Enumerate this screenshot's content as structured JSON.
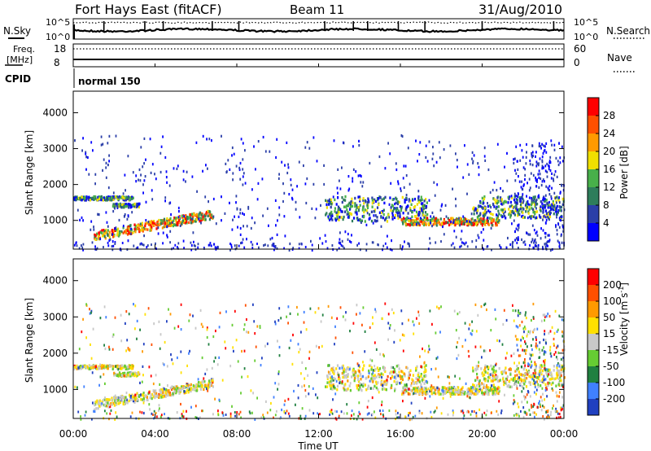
{
  "header": {
    "title": "Fort Hays East (fitACF)",
    "beam": "Beam 11",
    "date": "31/Aug/2010"
  },
  "top_panels": {
    "nsky_label": "N.Sky",
    "nsky_ticks": [
      "10^5",
      "10^0"
    ],
    "nsearch_label": "N.Search",
    "nsearch_ticks": [
      "10^5",
      "10^0"
    ],
    "freq_label_1": "Freq.",
    "freq_label_2": "[MHz]",
    "freq_ticks": [
      "18",
      "8"
    ],
    "nave_label": "Nave",
    "nave_ticks": [
      "60",
      "0"
    ],
    "cpid_label": "CPID",
    "cpid_value": "normal 150"
  },
  "chart_data": [
    {
      "type": "heatmap",
      "quantity": "power",
      "ylabel": "Slant Range [km]",
      "ylim": [
        200,
        4600
      ],
      "yticks": [
        "1000",
        "2000",
        "3000",
        "4000"
      ],
      "colorbar_label": "Power [dB]",
      "colorbar_ticks": [
        "4",
        "8",
        "12",
        "16",
        "20",
        "24",
        "28"
      ],
      "colorbar_colors": [
        "#0000ff",
        "#2b3fa8",
        "#2e7d5b",
        "#48b04a",
        "#f0e000",
        "#ff9a00",
        "#ff5000",
        "#ff0000"
      ],
      "features": [
        {
          "t0": 0.0,
          "t1": 2.9,
          "range0": 1600,
          "range1": 1700,
          "level": "mid"
        },
        {
          "t0": 1.9,
          "t1": 3.2,
          "range0": 1400,
          "range1": 1500,
          "level": "mid"
        },
        {
          "t0": 1.0,
          "t1": 6.8,
          "range0": 600,
          "range1": 1200,
          "level": "high"
        },
        {
          "t0": 12.3,
          "t1": 17.3,
          "range0": 1000,
          "range1": 1700,
          "level": "mid"
        },
        {
          "t0": 16.0,
          "t1": 20.8,
          "range0": 900,
          "range1": 1100,
          "level": "high"
        },
        {
          "t0": 19.5,
          "t1": 24.0,
          "range0": 1100,
          "range1": 1700,
          "level": "mid"
        }
      ]
    },
    {
      "type": "heatmap",
      "quantity": "velocity",
      "ylabel": "Slant Range [km]",
      "ylim": [
        200,
        4600
      ],
      "yticks": [
        "1000",
        "2000",
        "3000",
        "4000"
      ],
      "xlabel": "Time UT",
      "xticks": [
        "00:00",
        "04:00",
        "08:00",
        "12:00",
        "16:00",
        "20:00",
        "00:00"
      ],
      "colorbar_label_main": "Velocity",
      "colorbar_label_unit": "[m s",
      "colorbar_label_exp": "-1",
      "colorbar_label_close": "]",
      "colorbar_ticks": [
        "200",
        "100",
        "50",
        "15",
        "-15",
        "-50",
        "-100",
        "-200"
      ],
      "colorbar_colors": [
        "#2040c0",
        "#4080ff",
        "#208040",
        "#66cc33",
        "#c8c8c8",
        "#ffe000",
        "#ff9a00",
        "#ff5000",
        "#ff0000"
      ]
    }
  ]
}
